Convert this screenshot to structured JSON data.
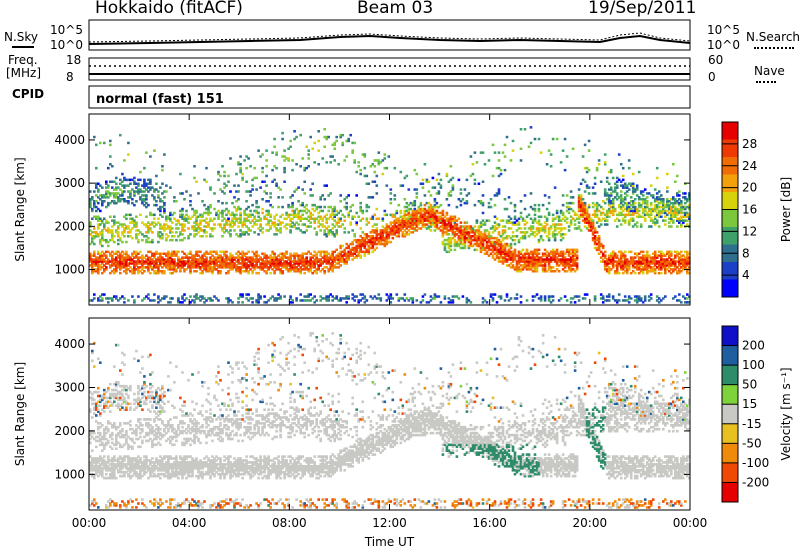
{
  "header": {
    "station": "Hokkaido (fitACF)",
    "beam": "Beam 03",
    "date": "19/Sep/2011"
  },
  "top_panels": {
    "nsky_label": "N.Sky",
    "nsky_ticks": [
      "10^5",
      "10^0"
    ],
    "nsearch_label": "N.Search",
    "freq_label_1": "Freq.",
    "freq_label_2": "[MHz]",
    "freq_ticks": [
      "18",
      "8"
    ],
    "nave_ticks": [
      "60",
      "0"
    ],
    "nave_label": "Nave",
    "cpid_label": "CPID",
    "cpid_value": "normal (fast) 151"
  },
  "chart_data": [
    {
      "type": "heatmap",
      "name": "power",
      "ylabel": "Slant Range [km]",
      "yticks": [
        1000,
        2000,
        3000,
        4000
      ],
      "ylim": [
        180,
        4600
      ],
      "xlim": [
        0,
        24
      ],
      "colorbar": {
        "label": "Power [dB]",
        "ticks": [
          "4",
          "8",
          "12",
          "16",
          "20",
          "24",
          "28"
        ],
        "colors": [
          "#0000ff",
          "#1c3fc8",
          "#2e6f8e",
          "#3fa06a",
          "#7cc83c",
          "#d6d20c",
          "#f2a10a",
          "#f26c06",
          "#ef3a04",
          "#e60000"
        ]
      }
    },
    {
      "type": "heatmap",
      "name": "velocity",
      "ylabel": "Slant Range [km]",
      "yticks": [
        1000,
        2000,
        3000,
        4000
      ],
      "ylim": [
        180,
        4600
      ],
      "xlim": [
        0,
        24
      ],
      "xlabel": "Time UT",
      "xticks": [
        "00:00",
        "04:00",
        "08:00",
        "12:00",
        "16:00",
        "20:00",
        "00:00"
      ],
      "colorbar": {
        "label": "Velocity [m s⁻¹]",
        "ticks": [
          "200",
          "100",
          "50",
          "15",
          "-15",
          "-50",
          "-100",
          "-200"
        ],
        "colors": [
          "#1010c8",
          "#1f5fa0",
          "#2e8c6a",
          "#7ed23a",
          "#c8c8c4",
          "#e8c020",
          "#f08a0a",
          "#ef4a04",
          "#e60000"
        ]
      }
    }
  ]
}
